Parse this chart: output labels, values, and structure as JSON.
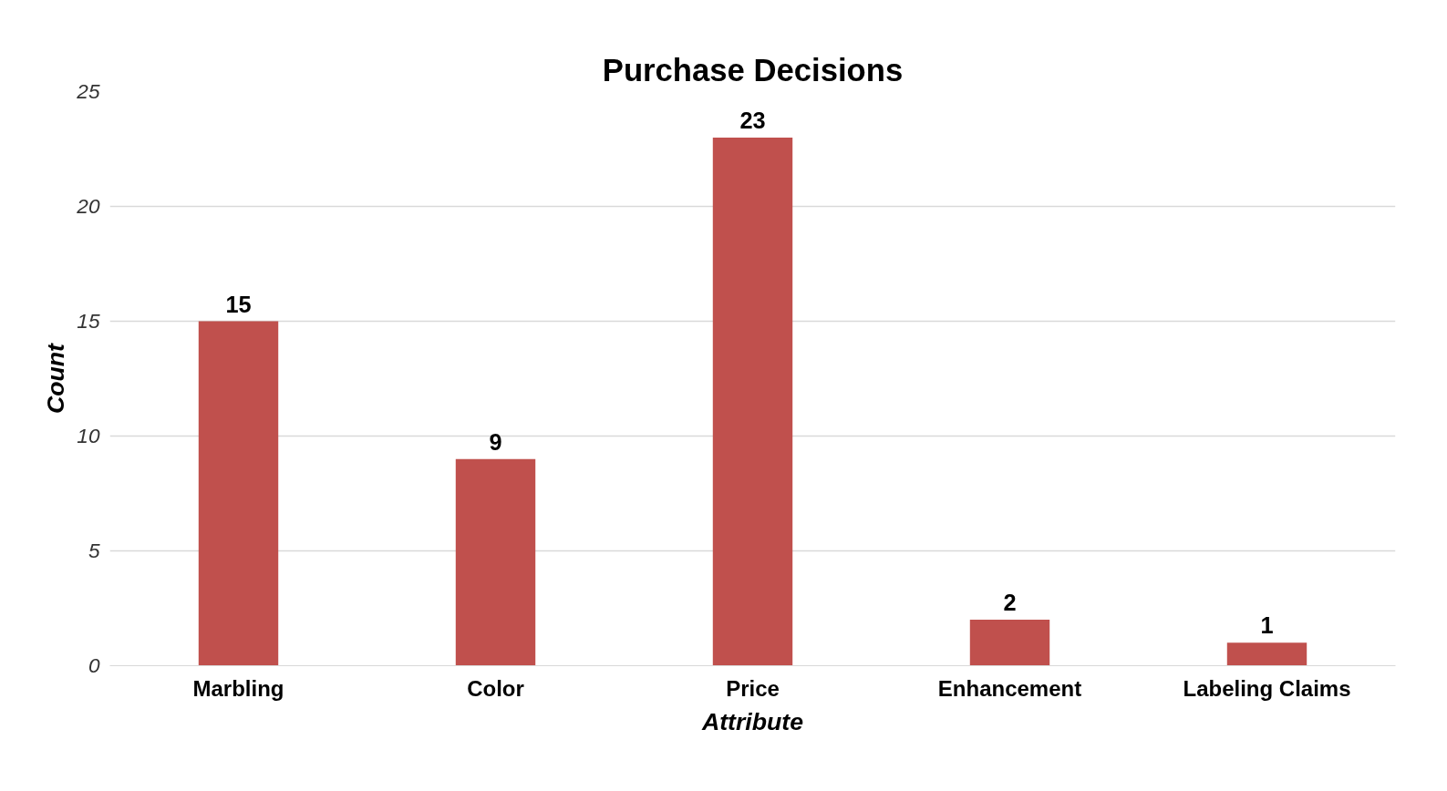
{
  "chart_data": {
    "type": "bar",
    "title": "Purchase Decisions",
    "xlabel": "Attribute",
    "ylabel": "Count",
    "categories": [
      "Marbling",
      "Color",
      "Price",
      "Enhancement",
      "Labeling Claims"
    ],
    "values": [
      15,
      9,
      23,
      2,
      1
    ],
    "color": "#c0504d",
    "ylim": [
      0,
      25
    ],
    "yticks": [
      0,
      5,
      10,
      15,
      20,
      25
    ],
    "grid": "y",
    "data_labels": true
  }
}
